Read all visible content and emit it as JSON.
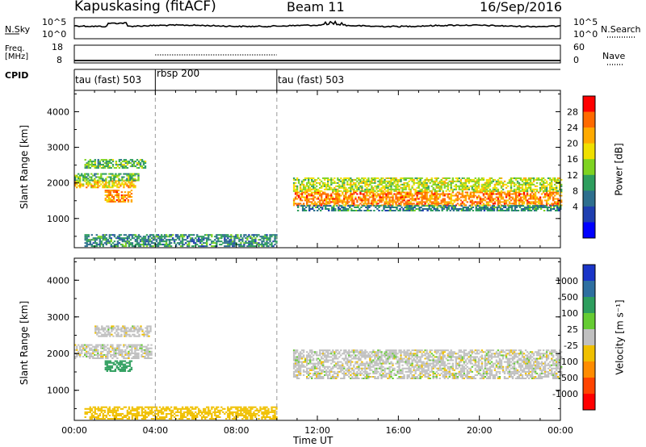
{
  "header": {
    "station": "Kapuskasing (fitACF)",
    "beam": "Beam 11",
    "date": "16/Sep/2016"
  },
  "strip_labels": {
    "nsky": "N.Sky",
    "nsearch": "N.Search",
    "freq_line1": "Freq.",
    "freq_line2": "[MHz]",
    "nave": "Nave",
    "cpid": "CPID"
  },
  "strip_ticks": {
    "noise_top_left": "10^5",
    "noise_bottom_left": "10^0",
    "noise_top_right": "10^5",
    "noise_bottom_right": "10^0",
    "freq_top": "18",
    "freq_bottom": "8",
    "nave_top": "60",
    "nave_bottom": "0"
  },
  "cpid_segments": [
    {
      "label": "tau (fast) 503",
      "start_hour": 0
    },
    {
      "label": "rbsp 200",
      "start_hour": 4
    },
    {
      "label": "tau (fast) 503",
      "start_hour": 10
    }
  ],
  "colorbars": {
    "power_label": "Power [dB]",
    "velocity_label": "Velocity [m s⁻¹]",
    "power_ticks": [
      "28",
      "24",
      "20",
      "16",
      "12",
      "8",
      "4"
    ],
    "velocity_ticks": [
      "1000",
      "500",
      "100",
      "25",
      "-25",
      "-100",
      "-500",
      "-1000"
    ],
    "power_colors": [
      "#ff0000",
      "#ff6a00",
      "#ffaa00",
      "#f0e000",
      "#7ed321",
      "#2e9e5e",
      "#2e6f8e",
      "#1f3fb0",
      "#0000ff"
    ],
    "velocity_colors": [
      "#1a35c8",
      "#2e6fa0",
      "#2e9e5e",
      "#66cc33",
      "#c0c0c0",
      "#f0c000",
      "#ff8c00",
      "#ff4400",
      "#ff0000"
    ]
  },
  "chart_data": [
    {
      "type": "heatmap",
      "name": "power",
      "ylabel": "Slant Range [km]",
      "ylim": [
        180,
        4600
      ],
      "xlim_hours": [
        0,
        24
      ],
      "yticks": [
        "1000",
        "2000",
        "3000",
        "4000"
      ],
      "bands": [
        {
          "x": [
            0,
            3.0
          ],
          "y": [
            1850,
            2050
          ],
          "value": 20
        },
        {
          "x": [
            0,
            3.2
          ],
          "y": [
            2050,
            2250
          ],
          "value": 12
        },
        {
          "x": [
            0.5,
            3.5
          ],
          "y": [
            2400,
            2650
          ],
          "value": 12
        },
        {
          "x": [
            1.5,
            2.8
          ],
          "y": [
            1450,
            1800
          ],
          "value": 24
        },
        {
          "x": [
            10.8,
            24
          ],
          "y": [
            1350,
            1750
          ],
          "value": 24
        },
        {
          "x": [
            10.8,
            24
          ],
          "y": [
            1750,
            2150
          ],
          "value": 16
        },
        {
          "x": [
            11.0,
            24
          ],
          "y": [
            1200,
            1350
          ],
          "value": 8
        },
        {
          "x": [
            0.5,
            10
          ],
          "y": [
            200,
            550
          ],
          "value": 8
        }
      ]
    },
    {
      "type": "heatmap",
      "name": "velocity",
      "ylabel": "Slant Range [km]",
      "xlabel": "Time UT",
      "ylim": [
        180,
        4600
      ],
      "xlim_hours": [
        0,
        24
      ],
      "yticks": [
        "1000",
        "2000",
        "3000",
        "4000"
      ],
      "xticks": [
        "00:00",
        "04:00",
        "08:00",
        "12:00",
        "16:00",
        "20:00",
        "00:00"
      ],
      "bands": [
        {
          "x": [
            0,
            3.8
          ],
          "y": [
            1850,
            2250
          ],
          "value": 0
        },
        {
          "x": [
            1.0,
            3.8
          ],
          "y": [
            2450,
            2750
          ],
          "value": 0
        },
        {
          "x": [
            1.5,
            2.8
          ],
          "y": [
            1500,
            1800
          ],
          "value": 200
        },
        {
          "x": [
            10.8,
            24
          ],
          "y": [
            1300,
            2100
          ],
          "value": 0
        },
        {
          "x": [
            0.5,
            10
          ],
          "y": [
            200,
            550
          ],
          "value": -60
        }
      ]
    }
  ]
}
